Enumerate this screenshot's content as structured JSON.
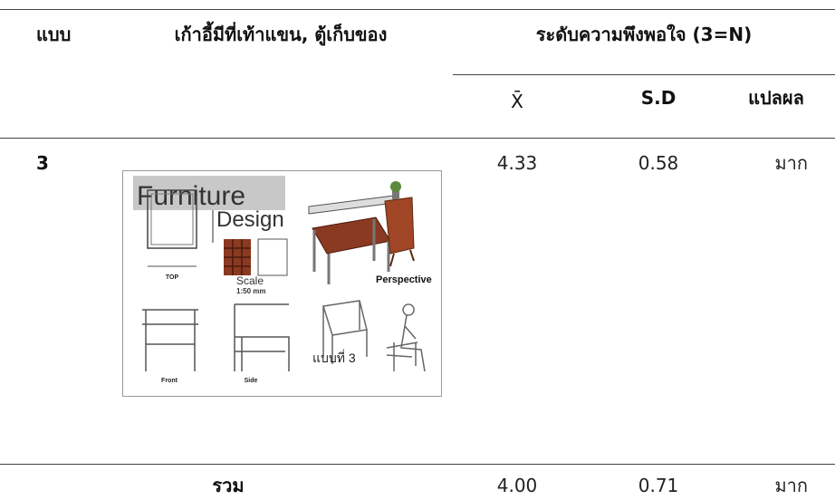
{
  "table": {
    "header": [
      "แบบ",
      "เก้าอี้มีที่เท้าแขน, ตู้เก็บของ",
      "ระดับความพึงพอใจ (3=N)"
    ],
    "subheader": [
      "X̄",
      "S.D",
      "แปลผล"
    ],
    "rows": [
      [
        "3",
        "4.33",
        "0.58",
        "มาก"
      ],
      [
        "รวม",
        "4.00",
        "0.71",
        "มาก"
      ]
    ]
  },
  "image": {
    "title": "Furniture",
    "subtitle": "Design",
    "scale": "Scale",
    "scale_value": "1:50 mm",
    "perspective": "Perspective",
    "labels": [
      "TOP",
      "Front",
      "Side"
    ],
    "variant": "แบบที่ 3"
  }
}
